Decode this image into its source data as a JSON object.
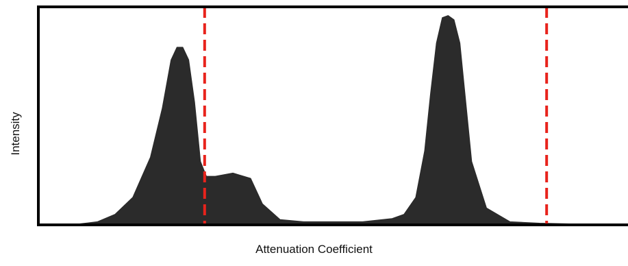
{
  "chart_data": {
    "type": "area",
    "title": "",
    "xlabel": "Attenuation Coefficient",
    "ylabel": "Intensity",
    "xlim": [
      0,
      1
    ],
    "ylim": [
      0,
      1
    ],
    "grid": false,
    "legend": "none",
    "fill_color": "#2b2b2b",
    "frame_color": "#000000",
    "threshold_color": "#e8231c",
    "thresholds": [
      0.282,
      0.862
    ],
    "series": [
      {
        "x": [
          0.0,
          0.07,
          0.1,
          0.13,
          0.16,
          0.19,
          0.21,
          0.225,
          0.235,
          0.245,
          0.255,
          0.265,
          0.275,
          0.285,
          0.3,
          0.33,
          0.36,
          0.38,
          0.41,
          0.45,
          0.5,
          0.55,
          0.6,
          0.62,
          0.64,
          0.655,
          0.665,
          0.675,
          0.685,
          0.695,
          0.705,
          0.715,
          0.725,
          0.735,
          0.76,
          0.8,
          0.85,
          0.9,
          0.95,
          1.0
        ],
        "y": [
          0.0,
          0.005,
          0.015,
          0.05,
          0.13,
          0.32,
          0.55,
          0.78,
          0.84,
          0.84,
          0.78,
          0.58,
          0.3,
          0.23,
          0.23,
          0.245,
          0.22,
          0.1,
          0.025,
          0.015,
          0.015,
          0.015,
          0.03,
          0.05,
          0.13,
          0.35,
          0.62,
          0.86,
          0.98,
          0.99,
          0.97,
          0.86,
          0.58,
          0.3,
          0.08,
          0.015,
          0.008,
          0.005,
          0.004,
          0.003
        ]
      }
    ]
  }
}
